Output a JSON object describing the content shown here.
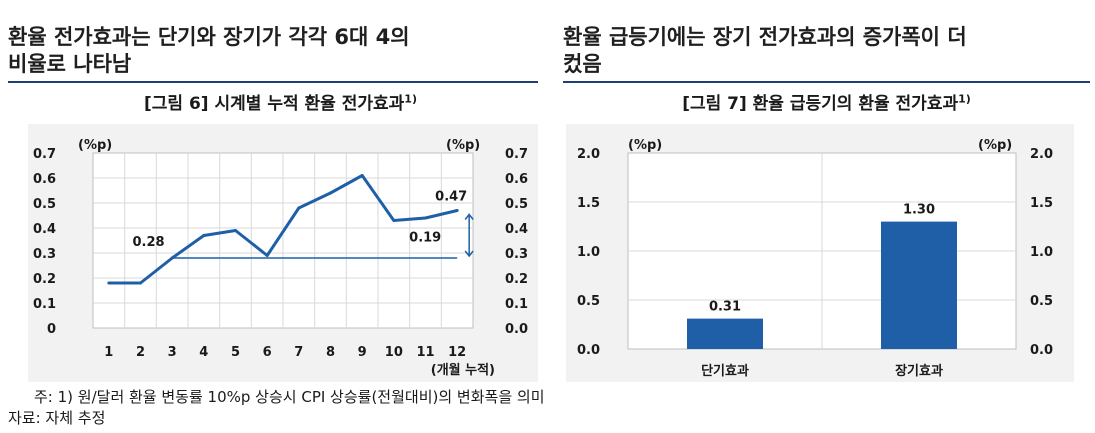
{
  "headlines": {
    "left": [
      "환율 전가효과는 단기와 장기가 각각 6대 4의",
      "비율로 나타남"
    ],
    "right": [
      "환율 급등기에는 장기 전가효과의 증가폭이 더",
      "컸음"
    ]
  },
  "colors": {
    "line": "#1f5fa8",
    "bar": "#1f5fa8",
    "highlight": "#c00000",
    "rule": "#1f3e78",
    "panel": "#f2f2f2"
  },
  "figure6": {
    "title": "[그림 6] 시계별 누적 환율 전가효과",
    "title_sup": "1)",
    "unit_left": "(%p)",
    "unit_right": "(%p)",
    "x_unit": "(개월 누적)",
    "left_ticks": [
      "0.7",
      "0.6",
      "0.5",
      "0.4",
      "0.3",
      "0.2",
      "0.1",
      "0"
    ],
    "right_ticks": [
      "0.7",
      "0.6",
      "0.5",
      "0.4",
      "0.3",
      "0.2",
      "0.1",
      "0.0"
    ],
    "annotations": {
      "label_028": "0.28",
      "label_047": "0.47",
      "label_019": "0.19"
    }
  },
  "figure7": {
    "title": "[그림 7] 환율 급등기의 환율 전가효과",
    "title_sup": "1)",
    "unit_left": "(%p)",
    "unit_right": "(%p)",
    "left_ticks": [
      "2.0",
      "1.5",
      "1.0",
      "0.5",
      "0.0"
    ],
    "right_ticks": [
      "2.0",
      "1.5",
      "1.0",
      "0.5",
      "0.0"
    ]
  },
  "chart_data": [
    {
      "type": "line",
      "title": "[그림 6] 시계별 누적 환율 전가효과",
      "xlabel": "(개월 누적)",
      "ylabel": "(%p)",
      "ylim": [
        0,
        0.7
      ],
      "x": [
        1,
        2,
        3,
        4,
        5,
        6,
        7,
        8,
        9,
        10,
        11,
        12
      ],
      "series": [
        {
          "values": [
            0.18,
            0.18,
            0.28,
            0.37,
            0.39,
            0.29,
            0.48,
            0.54,
            0.61,
            0.43,
            0.44,
            0.47
          ]
        }
      ],
      "reference_line": 0.28,
      "data_labels": {
        "3": "0.28",
        "12": "0.47"
      },
      "difference_label": "0.19",
      "grid": true
    },
    {
      "type": "bar",
      "title": "[그림 7] 환율 급등기의 환율 전가효과",
      "categories": [
        "단기효과",
        "장기효과"
      ],
      "values": [
        0.31,
        1.3
      ],
      "ylabel": "(%p)",
      "ylim": [
        0,
        2.0
      ],
      "grid": true
    }
  ],
  "footnotes": {
    "note": "주: 1) 원/달러 환율 변동률 10%p 상승시 CPI 상승률(전월대비)의 변화폭을 의미",
    "source": "자료: 자체 추정"
  }
}
